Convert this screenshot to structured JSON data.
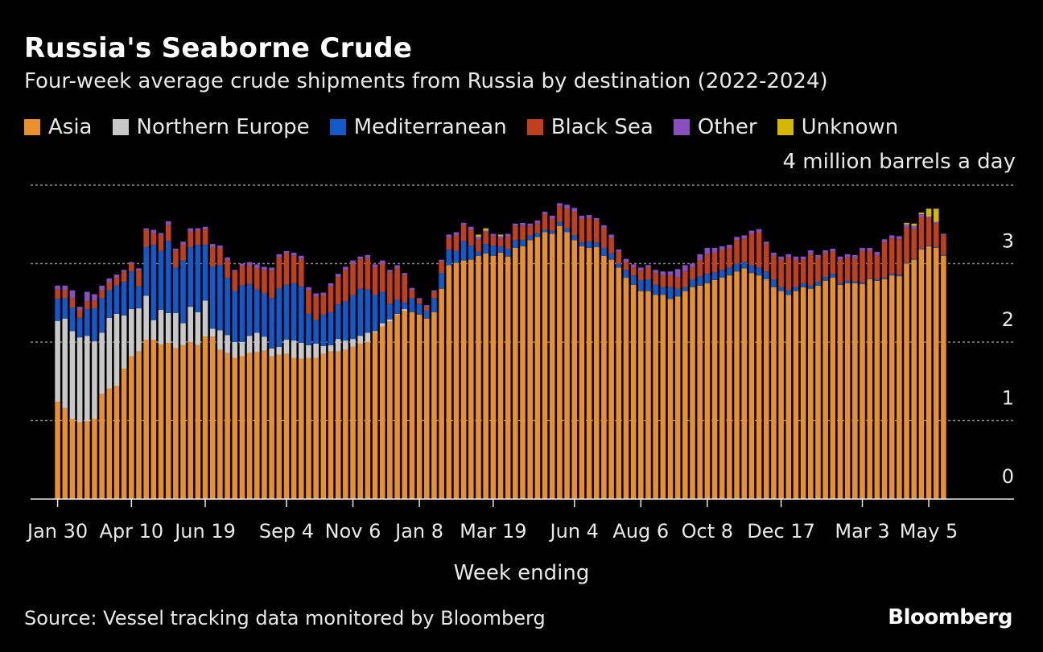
{
  "title": "Russia's Seaborne Crude",
  "subtitle": "Four-week average crude shipments from Russia by destination (2022-2024)",
  "unit_label": "4 million barrels a day",
  "source": "Source: Vessel tracking data monitored by Bloomberg",
  "brand": "Bloomberg",
  "chart_data": {
    "type": "bar",
    "stacked": true,
    "title": "Russia's Seaborne Crude",
    "xlabel": "Week ending",
    "ylabel": "million barrels a day",
    "ylim": [
      0,
      4
    ],
    "yticks": [
      0,
      1,
      2,
      3
    ],
    "grid": true,
    "legend_position": "top-left",
    "x_tick_labels": [
      {
        "label": "Jan 30",
        "index": 0
      },
      {
        "label": "Apr 10",
        "index": 10
      },
      {
        "label": "Jun 19",
        "index": 20
      },
      {
        "label": "Sep 4",
        "index": 31
      },
      {
        "label": "Nov 6",
        "index": 40
      },
      {
        "label": "Jan 8",
        "index": 49
      },
      {
        "label": "Mar 19",
        "index": 59
      },
      {
        "label": "Jun 4",
        "index": 70
      },
      {
        "label": "Aug 6",
        "index": 79
      },
      {
        "label": "Oct 8",
        "index": 88
      },
      {
        "label": "Dec 17",
        "index": 98
      },
      {
        "label": "Mar 3",
        "index": 109
      },
      {
        "label": "May 5",
        "index": 118
      }
    ],
    "series": [
      {
        "name": "Asia",
        "color": "#e8912c",
        "values": [
          1.24,
          1.16,
          1.02,
          0.98,
          0.99,
          1.02,
          1.34,
          1.41,
          1.44,
          1.66,
          1.82,
          1.88,
          2.03,
          2.03,
          1.97,
          1.99,
          1.92,
          1.96,
          2.0,
          1.96,
          2.07,
          2.07,
          1.9,
          1.86,
          1.8,
          1.82,
          1.86,
          1.87,
          1.89,
          1.82,
          1.84,
          1.85,
          1.8,
          1.79,
          1.8,
          1.8,
          1.85,
          1.88,
          1.88,
          1.9,
          1.94,
          1.98,
          2.0,
          2.12,
          2.2,
          2.26,
          2.35,
          2.4,
          2.38,
          2.35,
          2.3,
          2.38,
          2.68,
          2.98,
          3.01,
          3.04,
          3.05,
          3.1,
          3.13,
          3.1,
          3.14,
          3.09,
          3.2,
          3.22,
          3.3,
          3.34,
          3.4,
          3.38,
          3.48,
          3.4,
          3.3,
          3.22,
          3.2,
          3.21,
          3.1,
          3.05,
          2.95,
          2.82,
          2.73,
          2.65,
          2.65,
          2.6,
          2.6,
          2.55,
          2.58,
          2.65,
          2.7,
          2.72,
          2.75,
          2.79,
          2.82,
          2.85,
          2.9,
          2.94,
          2.88,
          2.85,
          2.8,
          2.7,
          2.65,
          2.6,
          2.65,
          2.7,
          2.68,
          2.72,
          2.78,
          2.82,
          2.73,
          2.75,
          2.75,
          2.74,
          2.8,
          2.78,
          2.8,
          2.85,
          2.84,
          3.0,
          3.05,
          3.18,
          3.22,
          3.2,
          3.1
        ]
      },
      {
        "name": "Northern Europe",
        "color": "#c8c8c8",
        "values": [
          1.03,
          1.14,
          1.12,
          1.08,
          1.09,
          0.99,
          0.78,
          0.9,
          0.92,
          0.68,
          0.6,
          0.55,
          0.56,
          0.25,
          0.44,
          0.38,
          0.45,
          0.28,
          0.45,
          0.42,
          0.46,
          0.1,
          0.25,
          0.23,
          0.2,
          0.18,
          0.22,
          0.25,
          0.18,
          0.1,
          0.1,
          0.18,
          0.22,
          0.2,
          0.16,
          0.18,
          0.1,
          0.08,
          0.16,
          0.12,
          0.1,
          0.1,
          0.12,
          0.02,
          0.04,
          0.03,
          0.01,
          0.02,
          0,
          0,
          0,
          0,
          0,
          0,
          0,
          0,
          0,
          0,
          0,
          0,
          0,
          0,
          0,
          0,
          0,
          0,
          0,
          0,
          0,
          0,
          0,
          0,
          0,
          0,
          0,
          0,
          0,
          0,
          0,
          0,
          0,
          0,
          0,
          0,
          0,
          0,
          0,
          0,
          0,
          0,
          0,
          0,
          0,
          0,
          0,
          0,
          0,
          0,
          0,
          0,
          0,
          0,
          0,
          0,
          0,
          0,
          0,
          0,
          0,
          0,
          0,
          0,
          0,
          0,
          0,
          0,
          0,
          0,
          0,
          0,
          0
        ]
      },
      {
        "name": "Mediterranean",
        "color": "#1359c8",
        "values": [
          0.28,
          0.26,
          0.3,
          0.25,
          0.34,
          0.42,
          0.44,
          0.35,
          0.36,
          0.43,
          0.48,
          0.28,
          0.62,
          0.96,
          0.75,
          0.92,
          0.58,
          0.8,
          0.76,
          0.86,
          0.71,
          0.79,
          0.83,
          0.73,
          0.65,
          0.72,
          0.66,
          0.55,
          0.55,
          0.64,
          0.74,
          0.7,
          0.73,
          0.72,
          0.4,
          0.3,
          0.4,
          0.42,
          0.44,
          0.5,
          0.56,
          0.6,
          0.55,
          0.46,
          0.4,
          0.2,
          0.18,
          0.08,
          0.18,
          0.14,
          0.1,
          0.18,
          0.2,
          0.2,
          0.15,
          0.25,
          0.18,
          0.05,
          0.12,
          0.13,
          0.08,
          0.1,
          0.1,
          0.08,
          0.06,
          0.05,
          0.03,
          0.04,
          0.05,
          0.05,
          0.06,
          0.05,
          0.08,
          0.06,
          0.1,
          0.08,
          0.05,
          0.1,
          0.12,
          0.14,
          0.15,
          0.13,
          0.1,
          0.15,
          0.1,
          0.05,
          0.1,
          0.12,
          0.12,
          0.1,
          0.1,
          0.1,
          0.1,
          0.08,
          0.1,
          0.1,
          0.1,
          0.1,
          0.05,
          0.06,
          0.05,
          0.05,
          0.04,
          0.05,
          0.05,
          0.05,
          0.02,
          0.03,
          0.02,
          0.02,
          0.01,
          0.02,
          0.02,
          0.02,
          0.02,
          0.01,
          0.01,
          0.01,
          0.01,
          0.01,
          0.01
        ]
      },
      {
        "name": "Black Sea",
        "color": "#c0401e",
        "values": [
          0.12,
          0.1,
          0.12,
          0.1,
          0.1,
          0.1,
          0.1,
          0.1,
          0.1,
          0.12,
          0.1,
          0.2,
          0.22,
          0.15,
          0.2,
          0.2,
          0.22,
          0.2,
          0.2,
          0.18,
          0.2,
          0.25,
          0.22,
          0.22,
          0.25,
          0.25,
          0.24,
          0.27,
          0.3,
          0.35,
          0.4,
          0.4,
          0.35,
          0.35,
          0.3,
          0.3,
          0.25,
          0.33,
          0.35,
          0.4,
          0.4,
          0.38,
          0.4,
          0.35,
          0.36,
          0.4,
          0.4,
          0.35,
          0.1,
          0.05,
          0.05,
          0.08,
          0.15,
          0.15,
          0.2,
          0.2,
          0.2,
          0.15,
          0.15,
          0.12,
          0.1,
          0.15,
          0.18,
          0.18,
          0.12,
          0.12,
          0.2,
          0.15,
          0.2,
          0.25,
          0.3,
          0.3,
          0.3,
          0.28,
          0.25,
          0.2,
          0.15,
          0.1,
          0.1,
          0.12,
          0.15,
          0.15,
          0.15,
          0.15,
          0.15,
          0.2,
          0.15,
          0.2,
          0.25,
          0.25,
          0.25,
          0.25,
          0.3,
          0.3,
          0.4,
          0.45,
          0.35,
          0.3,
          0.35,
          0.42,
          0.35,
          0.3,
          0.4,
          0.3,
          0.3,
          0.28,
          0.3,
          0.3,
          0.3,
          0.4,
          0.35,
          0.3,
          0.45,
          0.45,
          0.45,
          0.45,
          0.38,
          0.4,
          0.35,
          0.3,
          0.25
        ]
      },
      {
        "name": "Other",
        "color": "#8a4fbf",
        "values": [
          0.05,
          0.06,
          0.1,
          0.04,
          0.12,
          0.08,
          0.06,
          0.05,
          0.04,
          0.03,
          0.02,
          0.03,
          0.02,
          0.04,
          0.03,
          0.05,
          0.02,
          0.04,
          0.04,
          0.03,
          0.03,
          0.04,
          0.03,
          0.04,
          0.02,
          0.03,
          0.04,
          0.05,
          0.04,
          0.04,
          0.04,
          0.03,
          0.04,
          0.04,
          0.04,
          0.04,
          0.03,
          0.04,
          0.04,
          0.04,
          0.04,
          0.03,
          0.04,
          0.04,
          0.04,
          0.03,
          0.04,
          0.03,
          0.03,
          0.02,
          0.02,
          0.02,
          0.02,
          0.04,
          0.04,
          0.03,
          0.04,
          0.04,
          0.02,
          0.03,
          0.03,
          0.04,
          0.03,
          0.04,
          0.03,
          0.04,
          0.03,
          0.04,
          0.04,
          0.05,
          0.05,
          0.04,
          0.04,
          0.03,
          0.04,
          0.04,
          0.03,
          0.04,
          0.04,
          0.04,
          0.03,
          0.04,
          0.05,
          0.05,
          0.1,
          0.08,
          0.05,
          0.08,
          0.08,
          0.06,
          0.05,
          0.04,
          0.04,
          0.04,
          0.04,
          0.04,
          0.03,
          0.04,
          0.04,
          0.04,
          0.04,
          0.04,
          0.05,
          0.04,
          0.04,
          0.04,
          0.04,
          0.04,
          0.04,
          0.04,
          0.04,
          0.05,
          0.04,
          0.04,
          0.04,
          0.04,
          0.04,
          0.04,
          0.02,
          0.02,
          0.02
        ]
      },
      {
        "name": "Unknown",
        "color": "#d4b800",
        "values": [
          0,
          0,
          0,
          0,
          0,
          0,
          0,
          0,
          0,
          0,
          0,
          0,
          0,
          0,
          0,
          0,
          0,
          0,
          0,
          0,
          0,
          0,
          0,
          0,
          0,
          0,
          0,
          0,
          0,
          0,
          0,
          0,
          0,
          0,
          0,
          0,
          0,
          0,
          0,
          0,
          0,
          0,
          0,
          0,
          0,
          0,
          0,
          0,
          0,
          0,
          0,
          0,
          0,
          0,
          0,
          0,
          0,
          0.03,
          0.03,
          0,
          0.02,
          0,
          0,
          0,
          0,
          0,
          0,
          0,
          0,
          0,
          0,
          0,
          0,
          0,
          0,
          0,
          0,
          0,
          0,
          0,
          0,
          0,
          0,
          0,
          0,
          0,
          0,
          0,
          0,
          0,
          0,
          0,
          0,
          0,
          0,
          0,
          0,
          0,
          0,
          0,
          0,
          0,
          0,
          0,
          0,
          0,
          0,
          0,
          0,
          0,
          0,
          0,
          0,
          0,
          0,
          0.02,
          0.03,
          0.02,
          0.1,
          0.17
        ]
      }
    ]
  }
}
